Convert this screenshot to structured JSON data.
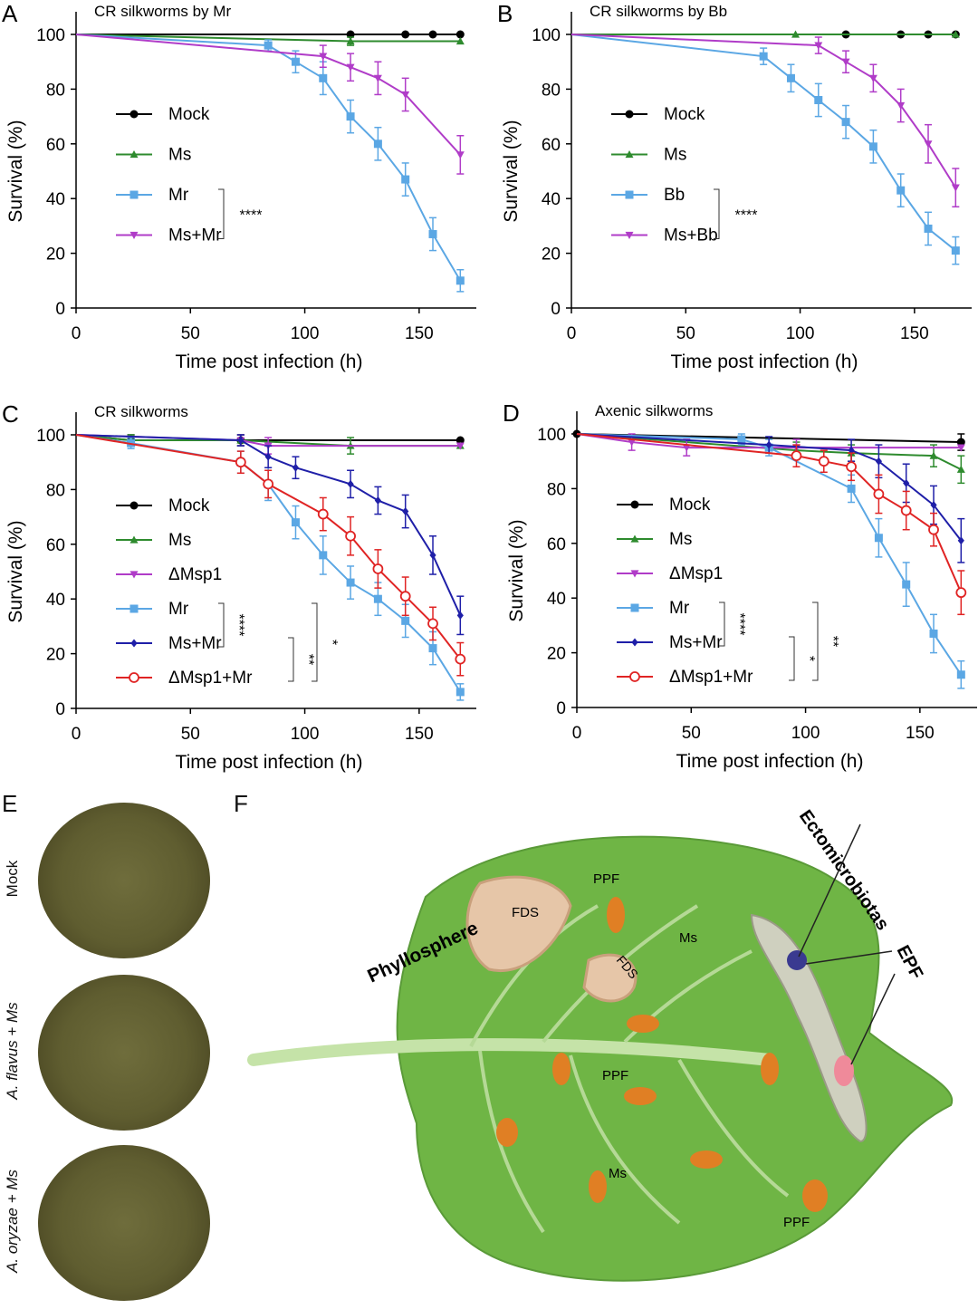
{
  "panels": {
    "A": "A",
    "B": "B",
    "C": "C",
    "D": "D",
    "E": "E",
    "F": "F"
  },
  "chart_data": [
    {
      "id": "A",
      "type": "line",
      "title": "CR silkworms by Mr",
      "xlabel": "Time post infection (h)",
      "ylabel": "Survival (%)",
      "xlim": [
        0,
        175
      ],
      "ylim": [
        0,
        100
      ],
      "xticks": [
        0,
        50,
        100,
        150
      ],
      "yticks": [
        0,
        20,
        40,
        60,
        80,
        100
      ],
      "series": [
        {
          "name": "Mock",
          "color": "#000000",
          "marker": "circle",
          "x": [
            0,
            120,
            144,
            156,
            168
          ],
          "y": [
            100,
            100,
            100,
            100,
            100
          ],
          "err": [
            0,
            0,
            0,
            0,
            0
          ]
        },
        {
          "name": "Ms",
          "color": "#2e8b2e",
          "marker": "triangle",
          "x": [
            0,
            120,
            168
          ],
          "y": [
            100,
            97.5,
            97.5
          ],
          "err": [
            0,
            1.5,
            0
          ]
        },
        {
          "name": "Mr",
          "color": "#5ba7e4",
          "marker": "square",
          "x": [
            0,
            84,
            96,
            108,
            120,
            132,
            144,
            156,
            168
          ],
          "y": [
            100,
            96,
            90,
            84,
            70,
            60,
            47,
            27,
            10
          ],
          "err": [
            0,
            2,
            4,
            6,
            6,
            6,
            6,
            6,
            4
          ]
        },
        {
          "name": "Ms+Mr",
          "color": "#b03cc8",
          "marker": "invtriangle",
          "x": [
            0,
            108,
            120,
            132,
            144,
            168
          ],
          "y": [
            100,
            92,
            88,
            84,
            78,
            56
          ],
          "err": [
            0,
            4,
            5,
            6,
            6,
            7
          ]
        }
      ],
      "annotations": [
        {
          "between": [
            2,
            3
          ],
          "label": "****"
        }
      ]
    },
    {
      "id": "B",
      "type": "line",
      "title": "CR silkworms by Bb",
      "xlabel": "Time post infection (h)",
      "ylabel": "Survival (%)",
      "xlim": [
        0,
        175
      ],
      "ylim": [
        0,
        100
      ],
      "xticks": [
        0,
        50,
        100,
        150
      ],
      "yticks": [
        0,
        20,
        40,
        60,
        80,
        100
      ],
      "series": [
        {
          "name": "Mock",
          "color": "#000000",
          "marker": "circle",
          "x": [
            0,
            120,
            144,
            156,
            168
          ],
          "y": [
            100,
            100,
            100,
            100,
            100
          ],
          "err": [
            0,
            0,
            0,
            0,
            0
          ]
        },
        {
          "name": "Ms",
          "color": "#2e8b2e",
          "marker": "triangle",
          "x": [
            0,
            98,
            168
          ],
          "y": [
            100,
            100,
            100
          ],
          "err": [
            0,
            0,
            0
          ]
        },
        {
          "name": "Bb",
          "color": "#5ba7e4",
          "marker": "square",
          "x": [
            0,
            84,
            96,
            108,
            120,
            132,
            144,
            156,
            168
          ],
          "y": [
            100,
            92,
            84,
            76,
            68,
            59,
            43,
            29,
            21
          ],
          "err": [
            0,
            3,
            5,
            6,
            6,
            6,
            6,
            6,
            5
          ]
        },
        {
          "name": "Ms+Bb",
          "color": "#b03cc8",
          "marker": "invtriangle",
          "x": [
            0,
            108,
            120,
            132,
            144,
            156,
            168
          ],
          "y": [
            100,
            96,
            90,
            84,
            74,
            60,
            44
          ],
          "err": [
            0,
            3,
            4,
            5,
            6,
            7,
            7
          ]
        }
      ],
      "annotations": [
        {
          "between": [
            2,
            3
          ],
          "label": "****"
        }
      ]
    },
    {
      "id": "C",
      "type": "line",
      "title": "CR silkworms",
      "xlabel": "Time post infection (h)",
      "ylabel": "Survival (%)",
      "xlim": [
        0,
        175
      ],
      "ylim": [
        0,
        100
      ],
      "xticks": [
        0,
        50,
        100,
        150
      ],
      "yticks": [
        0,
        20,
        40,
        60,
        80,
        100
      ],
      "series": [
        {
          "name": "Mock",
          "color": "#000000",
          "marker": "circle",
          "x": [
            0,
            24,
            72,
            168
          ],
          "y": [
            100,
            98,
            98,
            98
          ],
          "err": [
            0,
            2,
            2,
            0
          ]
        },
        {
          "name": "Ms",
          "color": "#2e8b2e",
          "marker": "triangle",
          "x": [
            0,
            24,
            72,
            120,
            168
          ],
          "y": [
            100,
            98,
            98,
            96,
            96
          ],
          "err": [
            0,
            2,
            2,
            3,
            0
          ]
        },
        {
          "name": "ΔMsp1",
          "color": "#b03cc8",
          "marker": "invtriangle",
          "x": [
            0,
            72,
            84,
            168
          ],
          "y": [
            100,
            98,
            96,
            96
          ],
          "err": [
            0,
            2,
            3,
            0
          ]
        },
        {
          "name": "Mr",
          "color": "#5ba7e4",
          "marker": "square",
          "x": [
            0,
            24,
            72,
            84,
            96,
            108,
            120,
            132,
            144,
            156,
            168
          ],
          "y": [
            100,
            97,
            90,
            82,
            68,
            56,
            46,
            40,
            32,
            22,
            6
          ],
          "err": [
            0,
            2,
            4,
            6,
            6,
            7,
            6,
            6,
            6,
            6,
            3
          ]
        },
        {
          "name": "Ms+Mr",
          "color": "#1f1fa8",
          "marker": "diamond",
          "x": [
            0,
            72,
            84,
            96,
            120,
            132,
            144,
            156,
            168
          ],
          "y": [
            100,
            98,
            92,
            88,
            82,
            76,
            72,
            56,
            34
          ],
          "err": [
            0,
            2,
            4,
            4,
            5,
            5,
            6,
            7,
            7
          ]
        },
        {
          "name": "ΔMsp1+Mr",
          "color": "#e02424",
          "marker": "opencircle",
          "x": [
            0,
            72,
            84,
            108,
            120,
            132,
            144,
            156,
            168
          ],
          "y": [
            100,
            90,
            82,
            71,
            63,
            51,
            41,
            31,
            18
          ],
          "err": [
            0,
            4,
            5,
            6,
            7,
            7,
            7,
            6,
            6
          ]
        }
      ],
      "annotations": [
        {
          "between": [
            3,
            4
          ],
          "label": "****"
        },
        {
          "between": [
            4,
            5
          ],
          "label": "**"
        },
        {
          "between": [
            3,
            5
          ],
          "label": "*"
        }
      ]
    },
    {
      "id": "D",
      "type": "line",
      "title": "Axenic silkworms",
      "xlabel": "Time post infection (h)",
      "ylabel": "Survival (%)",
      "xlim": [
        0,
        175
      ],
      "ylim": [
        0,
        100
      ],
      "xticks": [
        0,
        50,
        100,
        150
      ],
      "yticks": [
        0,
        20,
        40,
        60,
        80,
        100
      ],
      "series": [
        {
          "name": "Mock",
          "color": "#000000",
          "marker": "circle",
          "x": [
            0,
            168
          ],
          "y": [
            100,
            97
          ],
          "err": [
            0,
            3
          ]
        },
        {
          "name": "Ms",
          "color": "#2e8b2e",
          "marker": "triangle",
          "x": [
            0,
            96,
            120,
            156,
            168
          ],
          "y": [
            100,
            94,
            93,
            92,
            87
          ],
          "err": [
            0,
            3,
            3,
            4,
            5
          ]
        },
        {
          "name": "ΔMsp1",
          "color": "#b03cc8",
          "marker": "invtriangle",
          "x": [
            0,
            24,
            48,
            96,
            168
          ],
          "y": [
            100,
            97,
            95,
            95,
            95
          ],
          "err": [
            0,
            3,
            3,
            3,
            0
          ]
        },
        {
          "name": "Mr",
          "color": "#5ba7e4",
          "marker": "square",
          "x": [
            0,
            72,
            84,
            120,
            132,
            144,
            156,
            168
          ],
          "y": [
            100,
            98,
            95,
            80,
            62,
            45,
            27,
            12
          ],
          "err": [
            0,
            2,
            3,
            5,
            7,
            8,
            7,
            5
          ]
        },
        {
          "name": "Ms+Mr",
          "color": "#1f1fa8",
          "marker": "diamond",
          "x": [
            0,
            84,
            120,
            132,
            144,
            156,
            168
          ],
          "y": [
            100,
            96,
            94,
            90,
            82,
            74,
            61
          ],
          "err": [
            0,
            3,
            4,
            6,
            7,
            7,
            8
          ]
        },
        {
          "name": "ΔMsp1+Mr",
          "color": "#e02424",
          "marker": "opencircle",
          "x": [
            0,
            96,
            108,
            120,
            132,
            144,
            156,
            168
          ],
          "y": [
            100,
            92,
            90,
            88,
            78,
            72,
            65,
            42
          ],
          "err": [
            0,
            4,
            4,
            5,
            7,
            7,
            6,
            8
          ]
        }
      ],
      "annotations": [
        {
          "between": [
            3,
            4
          ],
          "label": "****"
        },
        {
          "between": [
            4,
            5
          ],
          "label": "*"
        },
        {
          "between": [
            3,
            5
          ],
          "label": "**"
        }
      ]
    }
  ],
  "plates": [
    {
      "label": "Mock"
    },
    {
      "label": "A. flavus + Ms"
    },
    {
      "label": "A. oryzae + Ms"
    }
  ],
  "diagram": {
    "phyllosphere": "Phyllosphere",
    "ectomicrobiotas": "Ectomicrobiotas",
    "epf": "EPF",
    "fds1": "FDS",
    "fds2": "FDS",
    "ppf1": "PPF",
    "ppf2": "PPF",
    "ppf3": "PPF",
    "ms1": "Ms",
    "ms2": "Ms"
  }
}
